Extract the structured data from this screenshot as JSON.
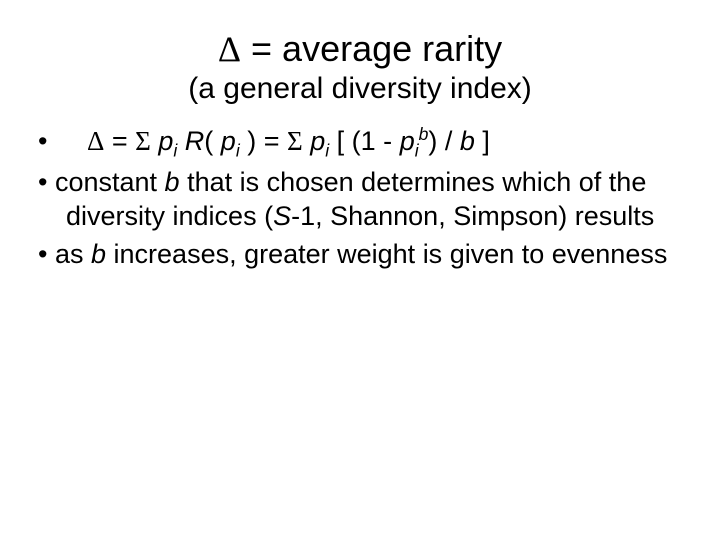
{
  "title_html": "<span class='sym'>Δ</span> = average rarity",
  "subtitle": "(a general diversity index)",
  "bullets": [
    "<span class='indent-formula'><span class='sym'>Δ</span> = <span class='sym'>Σ</span> <span class='it'>p<sub>i</sub> R</span>( <span class='it'>p<sub>i</sub></span> ) =  <span class='sym'>Σ</span> <span class='it'>p<sub>i</sub></span> [ (1 - <span class='it'>p<sub>i</sub><sup>b</sup></span>) / <span class='it'>b</span> ]</span>",
    "constant <span class='it'>b</span>  that is chosen determines which of the diversity indices (<span class='it'>S</span>-1, Shannon, Simpson) results",
    "as <span class='it'>b</span> increases, greater weight is given to evenness"
  ],
  "colors": {
    "background": "#ffffff",
    "text": "#000000"
  },
  "typography": {
    "title_fontsize": 36,
    "subtitle_fontsize": 30,
    "body_fontsize": 27,
    "font_family": "Arial"
  }
}
